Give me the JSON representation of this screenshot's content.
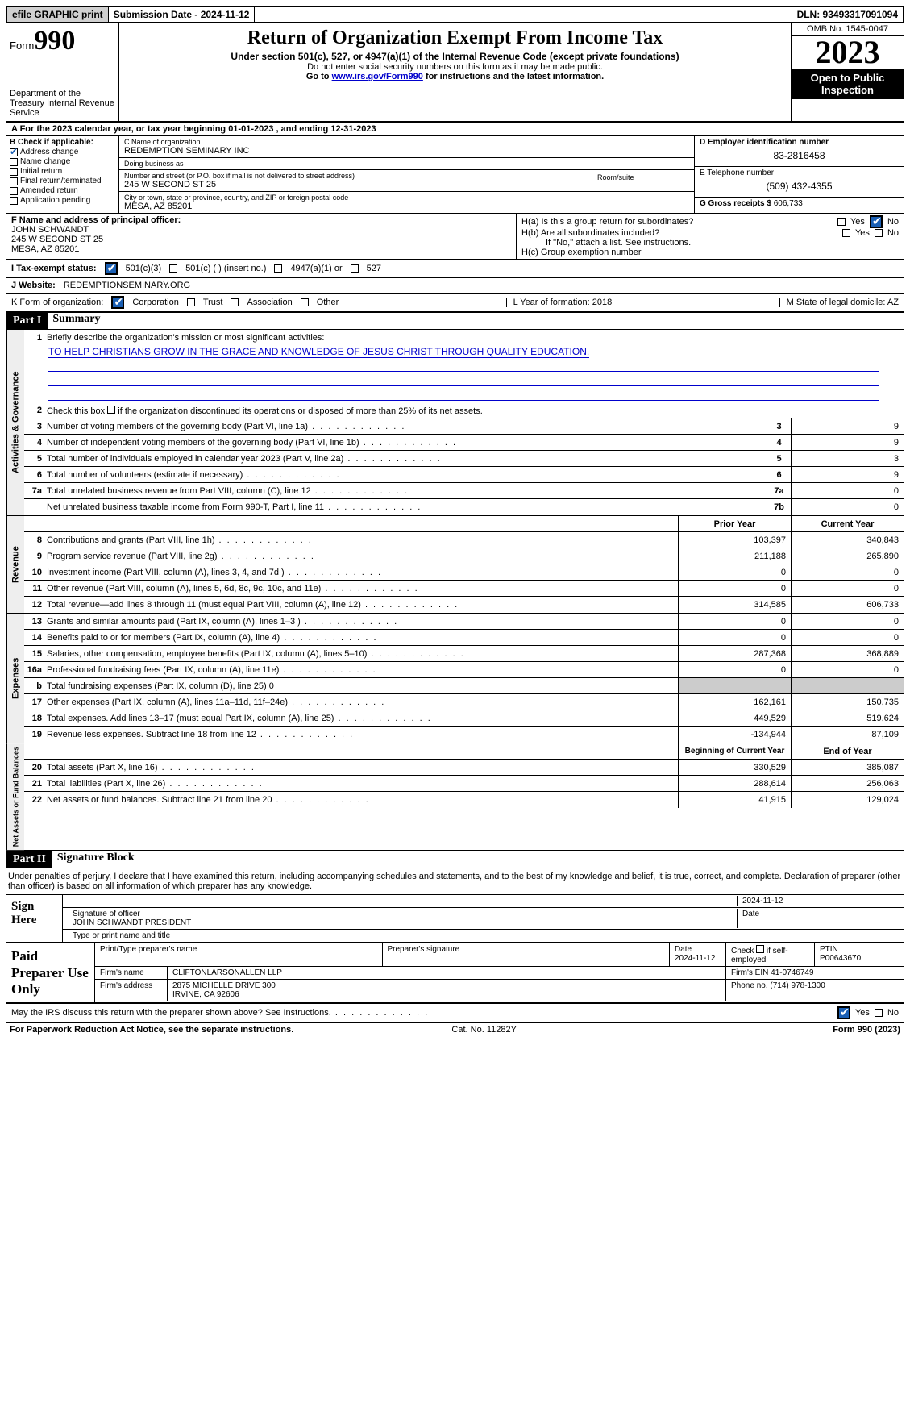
{
  "topbar": {
    "efile": "efile GRAPHIC print",
    "submission": "Submission Date - 2024-11-12",
    "dln": "DLN: 93493317091094"
  },
  "header": {
    "form_word": "Form",
    "form_num": "990",
    "dept": "Department of the Treasury Internal Revenue Service",
    "title": "Return of Organization Exempt From Income Tax",
    "sub": "Under section 501(c), 527, or 4947(a)(1) of the Internal Revenue Code (except private foundations)",
    "note1": "Do not enter social security numbers on this form as it may be made public.",
    "note2_pre": "Go to ",
    "note2_link": "www.irs.gov/Form990",
    "note2_post": " for instructions and the latest information.",
    "omb": "OMB No. 1545-0047",
    "year": "2023",
    "open": "Open to Public Inspection"
  },
  "row_a": "A  For the 2023 calendar year, or tax year beginning 01-01-2023   , and ending 12-31-2023",
  "box_b": {
    "label": "B Check if applicable:",
    "items": [
      "Address change",
      "Name change",
      "Initial return",
      "Final return/terminated",
      "Amended return",
      "Application pending"
    ],
    "checked_index": 0
  },
  "box_c": {
    "name_lbl": "C Name of organization",
    "name": "REDEMPTION SEMINARY INC",
    "dba_lbl": "Doing business as",
    "dba": "",
    "street_lbl": "Number and street (or P.O. box if mail is not delivered to street address)",
    "street": "245 W SECOND ST 25",
    "room_lbl": "Room/suite",
    "city_lbl": "City or town, state or province, country, and ZIP or foreign postal code",
    "city": "MESA, AZ  85201"
  },
  "box_d": {
    "lbl": "D Employer identification number",
    "val": "83-2816458"
  },
  "box_e": {
    "lbl": "E Telephone number",
    "val": "(509) 432-4355"
  },
  "box_g": {
    "lbl": "G Gross receipts $",
    "val": "606,733"
  },
  "box_f": {
    "lbl": "F  Name and address of principal officer:",
    "name": "JOHN SCHWANDT",
    "street": "245 W SECOND ST 25",
    "city": "MESA, AZ  85201"
  },
  "box_h": {
    "ha": "H(a)  Is this a group return for subordinates?",
    "hb": "H(b)  Are all subordinates included?",
    "hb_note": "If \"No,\" attach a list. See instructions.",
    "hc": "H(c)  Group exemption number",
    "yes": "Yes",
    "no": "No"
  },
  "row_i": {
    "lbl": "I   Tax-exempt status:",
    "opts": [
      "501(c)(3)",
      "501(c) (  ) (insert no.)",
      "4947(a)(1) or",
      "527"
    ],
    "checked_index": 0
  },
  "row_j": {
    "lbl": "J   Website:",
    "val": "REDEMPTIONSEMINARY.ORG"
  },
  "row_k": {
    "lbl": "K Form of organization:",
    "opts": [
      "Corporation",
      "Trust",
      "Association",
      "Other"
    ],
    "checked_index": 0,
    "l": "L Year of formation: 2018",
    "m": "M State of legal domicile: AZ"
  },
  "part1": {
    "hdr": "Part I",
    "title": "Summary"
  },
  "governance": {
    "tab": "Activities & Governance",
    "l1": "Briefly describe the organization's mission or most significant activities:",
    "mission": "TO HELP CHRISTIANS GROW IN THE GRACE AND KNOWLEDGE OF JESUS CHRIST THROUGH QUALITY EDUCATION.",
    "l2": "Check this box      if the organization discontinued its operations or disposed of more than 25% of its net assets.",
    "rows": [
      {
        "n": "3",
        "t": "Number of voting members of the governing body (Part VI, line 1a)",
        "b": "3",
        "v": "9"
      },
      {
        "n": "4",
        "t": "Number of independent voting members of the governing body (Part VI, line 1b)",
        "b": "4",
        "v": "9"
      },
      {
        "n": "5",
        "t": "Total number of individuals employed in calendar year 2023 (Part V, line 2a)",
        "b": "5",
        "v": "3"
      },
      {
        "n": "6",
        "t": "Total number of volunteers (estimate if necessary)",
        "b": "6",
        "v": "9"
      },
      {
        "n": "7a",
        "t": "Total unrelated business revenue from Part VIII, column (C), line 12",
        "b": "7a",
        "v": "0"
      },
      {
        "n": "",
        "t": "Net unrelated business taxable income from Form 990-T, Part I, line 11",
        "b": "7b",
        "v": "0"
      }
    ]
  },
  "revenue": {
    "tab": "Revenue",
    "hdr_prior": "Prior Year",
    "hdr_curr": "Current Year",
    "rows": [
      {
        "n": "8",
        "t": "Contributions and grants (Part VIII, line 1h)",
        "p": "103,397",
        "c": "340,843"
      },
      {
        "n": "9",
        "t": "Program service revenue (Part VIII, line 2g)",
        "p": "211,188",
        "c": "265,890"
      },
      {
        "n": "10",
        "t": "Investment income (Part VIII, column (A), lines 3, 4, and 7d )",
        "p": "0",
        "c": "0"
      },
      {
        "n": "11",
        "t": "Other revenue (Part VIII, column (A), lines 5, 6d, 8c, 9c, 10c, and 11e)",
        "p": "0",
        "c": "0"
      },
      {
        "n": "12",
        "t": "Total revenue—add lines 8 through 11 (must equal Part VIII, column (A), line 12)",
        "p": "314,585",
        "c": "606,733"
      }
    ]
  },
  "expenses": {
    "tab": "Expenses",
    "rows": [
      {
        "n": "13",
        "t": "Grants and similar amounts paid (Part IX, column (A), lines 1–3 )",
        "p": "0",
        "c": "0"
      },
      {
        "n": "14",
        "t": "Benefits paid to or for members (Part IX, column (A), line 4)",
        "p": "0",
        "c": "0"
      },
      {
        "n": "15",
        "t": "Salaries, other compensation, employee benefits (Part IX, column (A), lines 5–10)",
        "p": "287,368",
        "c": "368,889"
      },
      {
        "n": "16a",
        "t": "Professional fundraising fees (Part IX, column (A), line 11e)",
        "p": "0",
        "c": "0"
      },
      {
        "n": "b",
        "t": "Total fundraising expenses (Part IX, column (D), line 25) 0",
        "p": "",
        "c": "",
        "grey": true
      },
      {
        "n": "17",
        "t": "Other expenses (Part IX, column (A), lines 11a–11d, 11f–24e)",
        "p": "162,161",
        "c": "150,735"
      },
      {
        "n": "18",
        "t": "Total expenses. Add lines 13–17 (must equal Part IX, column (A), line 25)",
        "p": "449,529",
        "c": "519,624"
      },
      {
        "n": "19",
        "t": "Revenue less expenses. Subtract line 18 from line 12",
        "p": "-134,944",
        "c": "87,109"
      }
    ]
  },
  "netassets": {
    "tab": "Net Assets or Fund Balances",
    "hdr_beg": "Beginning of Current Year",
    "hdr_end": "End of Year",
    "rows": [
      {
        "n": "20",
        "t": "Total assets (Part X, line 16)",
        "p": "330,529",
        "c": "385,087"
      },
      {
        "n": "21",
        "t": "Total liabilities (Part X, line 26)",
        "p": "288,614",
        "c": "256,063"
      },
      {
        "n": "22",
        "t": "Net assets or fund balances. Subtract line 21 from line 20",
        "p": "41,915",
        "c": "129,024"
      }
    ]
  },
  "part2": {
    "hdr": "Part II",
    "title": "Signature Block"
  },
  "penalties": "Under penalties of perjury, I declare that I have examined this return, including accompanying schedules and statements, and to the best of my knowledge and belief, it is true, correct, and complete. Declaration of preparer (other than officer) is based on all information of which preparer has any knowledge.",
  "sign": {
    "left": "Sign Here",
    "date": "2024-11-12",
    "sig_lbl": "Signature of officer",
    "officer": "JOHN SCHWANDT PRESIDENT",
    "type_lbl": "Type or print name and title",
    "date_lbl": "Date"
  },
  "prep": {
    "left": "Paid Preparer Use Only",
    "h1": "Print/Type preparer's name",
    "h2": "Preparer's signature",
    "h3": "Date",
    "h3v": "2024-11-12",
    "h4": "Check      if self-employed",
    "h5": "PTIN",
    "h5v": "P00643670",
    "firm_lbl": "Firm's name",
    "firm": "CLIFTONLARSONALLEN LLP",
    "ein_lbl": "Firm's EIN",
    "ein": "41-0746749",
    "addr_lbl": "Firm's address",
    "addr1": "2875 MICHELLE DRIVE 300",
    "addr2": "IRVINE, CA  92606",
    "phone_lbl": "Phone no.",
    "phone": "(714) 978-1300"
  },
  "may_discuss": "May the IRS discuss this return with the preparer shown above? See Instructions.",
  "footer": {
    "l": "For Paperwork Reduction Act Notice, see the separate instructions.",
    "c": "Cat. No. 11282Y",
    "r": "Form 990 (2023)"
  }
}
